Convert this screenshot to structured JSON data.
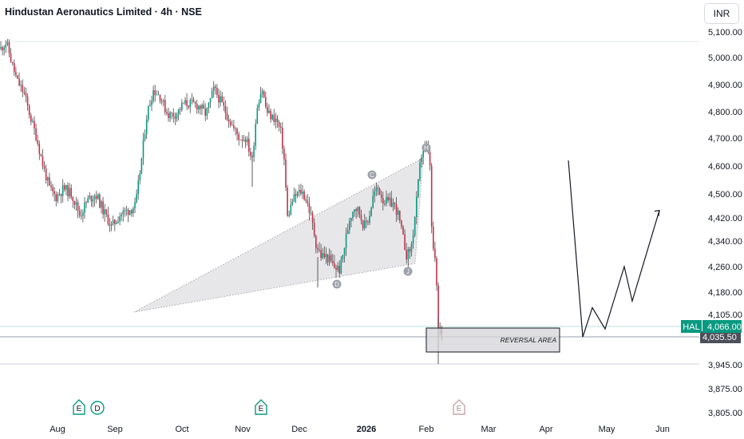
{
  "header": {
    "title": "Hindustan Aeronautics Limited · 4h · NSE",
    "currency_button": "INR"
  },
  "colors": {
    "up": "#089981",
    "down": "#c2324a",
    "wick": "#4a4a4a",
    "triangle_fill": "#e3e3e6",
    "box_fill": "#d4d4d7",
    "projection_line": "#131722",
    "price_tag": "#089981"
  },
  "chart_data": {
    "type": "candlestick",
    "symbol": "HAL",
    "interval": "4h",
    "exchange": "NSE",
    "y_ticks": [
      "5,100.00",
      "5,000.00",
      "4,900.00",
      "4,800.00",
      "4,700.00",
      "4,600.00",
      "4,500.00",
      "4,420.00",
      "4,340.00",
      "4,260.00",
      "4,180.00",
      "4,105.00",
      "4,035.50",
      "3,945.00",
      "3,875.00",
      "3,805.00"
    ],
    "x_ticks": [
      "Aug",
      "Sep",
      "Oct",
      "Nov",
      "Dec",
      "2026",
      "Feb",
      "Mar",
      "Apr",
      "May",
      "Jun"
    ],
    "last_price": {
      "label": "HAL",
      "value": "4,066.00"
    },
    "reference_price": "4,035.50",
    "pattern_points": [
      "C",
      "D",
      "H",
      "J"
    ],
    "annotation_box": {
      "label": "REVERSAL AREA"
    },
    "event_markers": [
      {
        "icon": "earnings-icon",
        "text": "E",
        "month": "Aug"
      },
      {
        "icon": "dividend-icon",
        "text": "D",
        "month": "Aug"
      },
      {
        "icon": "earnings-icon",
        "text": "E",
        "month": "Nov"
      },
      {
        "icon": "earnings-icon",
        "text": "E",
        "month": "Feb",
        "upcoming": true
      }
    ],
    "projection_path_prices": [
      4620,
      4035,
      4128,
      4060,
      4260,
      4150,
      4445
    ]
  }
}
